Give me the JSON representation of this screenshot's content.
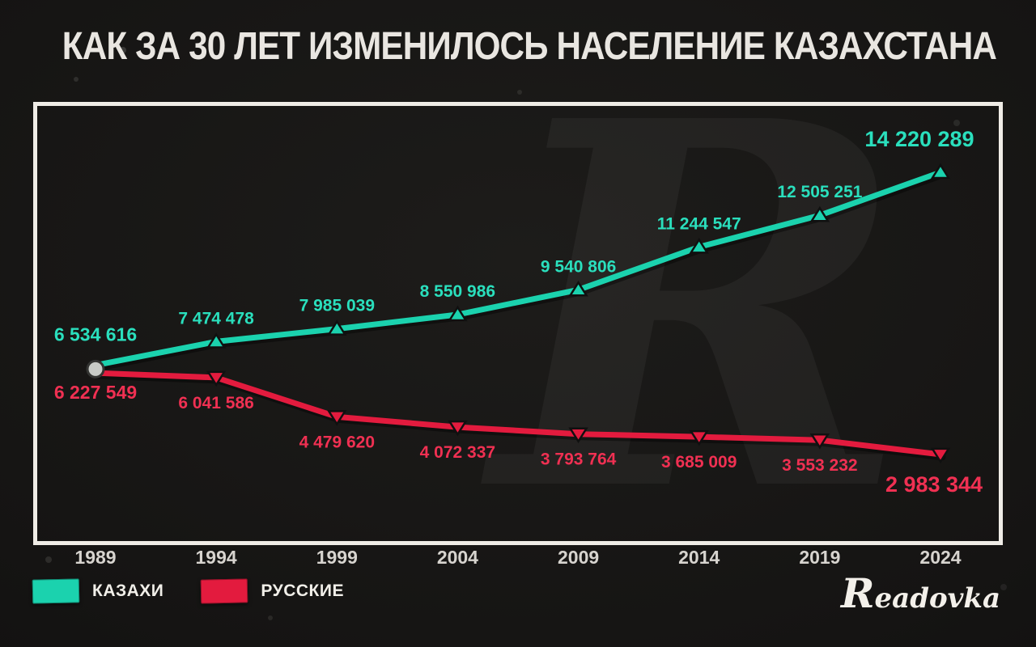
{
  "title": "КАК ЗА 30 ЛЕТ ИЗМЕНИЛОСЬ НАСЕЛЕНИЕ КАЗАХСТАНА",
  "watermark": "R",
  "logo": "Readovka",
  "legend": [
    {
      "label": "КАЗАХИ",
      "color": "#1bd2ae"
    },
    {
      "label": "РУССКИЕ",
      "color": "#e31b3e"
    }
  ],
  "chart_data": {
    "type": "line",
    "title": "КАК ЗА 30 ЛЕТ ИЗМЕНИЛОСЬ НАСЕЛЕНИЕ КАЗАХСТАНА",
    "categories": [
      "1989",
      "1994",
      "1999",
      "2004",
      "2009",
      "2014",
      "2019",
      "2024"
    ],
    "series": [
      {
        "id": "kazakhs",
        "name": "КАЗАХИ",
        "color": "#1bd2ae",
        "label_color": "#2adfbd",
        "marker": "triangle-up",
        "values": [
          6534616,
          7474478,
          7985039,
          8550986,
          9540806,
          11244547,
          12505251,
          14220289
        ],
        "labels": [
          "6 534 616",
          "7 474 478",
          "7 985 039",
          "8 550 986",
          "9 540 806",
          "11 244 547",
          "12 505 251",
          "14 220 289"
        ]
      },
      {
        "id": "russians",
        "name": "РУССКИЕ",
        "color": "#e31b3e",
        "label_color": "#f03052",
        "marker": "triangle-down",
        "values": [
          6227549,
          6041586,
          4479620,
          4072337,
          3793764,
          3685009,
          3553232,
          2983344
        ],
        "labels": [
          "6 227 549",
          "6 041 586",
          "4 479 620",
          "4 072 337",
          "3 793 764",
          "3 685 009",
          "3 553 232",
          "2 983 344"
        ]
      }
    ],
    "ylim": [
      2400000,
      14800000
    ],
    "grid": false,
    "legend_position": "bottom-left",
    "start_marker": "shared-gray-circle-1989"
  }
}
